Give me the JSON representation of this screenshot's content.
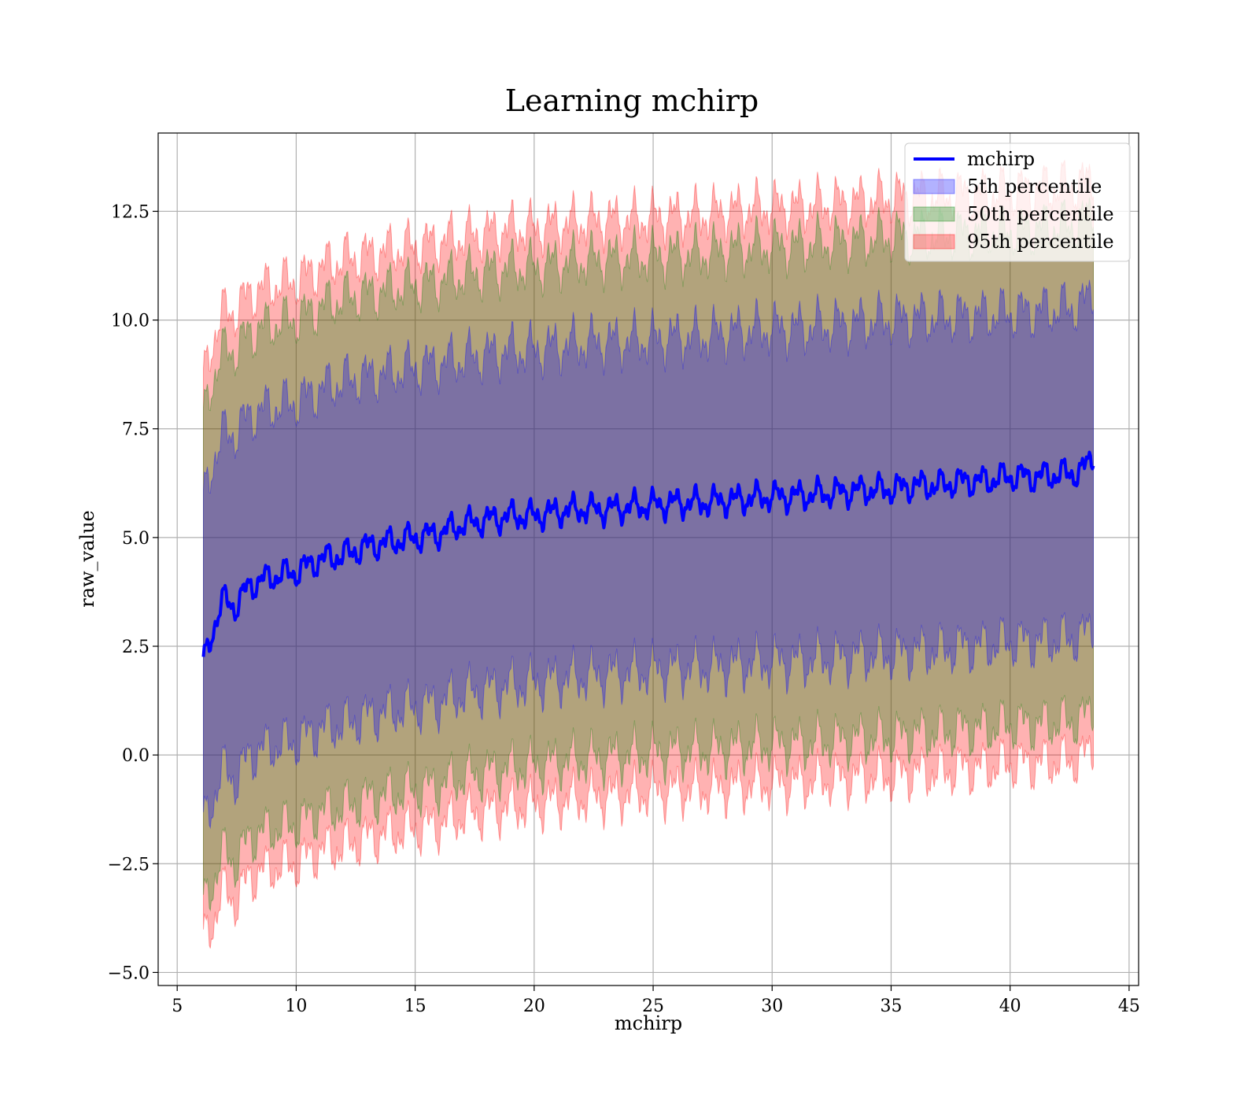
{
  "chart_data": {
    "type": "line",
    "title": "Learning mchirp",
    "xlabel": "mchirp",
    "ylabel": "raw_value",
    "xlim": [
      4.2,
      45.4
    ],
    "ylim": [
      -5.3,
      14.3
    ],
    "xticks": [
      5,
      10,
      15,
      20,
      25,
      30,
      35,
      40,
      45
    ],
    "xtick_labels": [
      "5",
      "10",
      "15",
      "20",
      "25",
      "30",
      "35",
      "40",
      "45"
    ],
    "yticks": [
      -5.0,
      -2.5,
      0.0,
      2.5,
      5.0,
      7.5,
      10.0,
      12.5
    ],
    "ytick_labels": [
      "−5.0",
      "−2.5",
      "0.0",
      "2.5",
      "5.0",
      "7.5",
      "10.0",
      "12.5"
    ],
    "grid": true,
    "legend_position": "top-right",
    "x": [
      6.1,
      6.5,
      7.0,
      7.5,
      8.0,
      9.0,
      10.0,
      11.0,
      12.0,
      13.0,
      14.0,
      15.0,
      16.0,
      17.0,
      18.0,
      19.0,
      20.0,
      21.0,
      22.0,
      23.0,
      24.0,
      25.0,
      26.0,
      27.0,
      28.0,
      29.0,
      30.0,
      31.0,
      32.0,
      33.0,
      34.0,
      35.0,
      36.0,
      37.0,
      38.0,
      39.0,
      40.0,
      41.0,
      42.0,
      43.0,
      43.5
    ],
    "series": [
      {
        "name": "mchirp",
        "kind": "line",
        "color": "#0000ff",
        "y": [
          2.1,
          2.9,
          3.6,
          3.4,
          3.9,
          4.1,
          4.2,
          4.5,
          4.6,
          4.8,
          4.9,
          5.0,
          5.1,
          5.3,
          5.4,
          5.5,
          5.5,
          5.6,
          5.65,
          5.65,
          5.7,
          5.75,
          5.8,
          5.8,
          5.85,
          5.9,
          5.95,
          5.95,
          6.0,
          6.05,
          6.1,
          6.1,
          6.2,
          6.2,
          6.3,
          6.3,
          6.4,
          6.4,
          6.45,
          6.5,
          6.9
        ]
      },
      {
        "name": "5th percentile",
        "kind": "band",
        "color": "#0000ff",
        "upper": [
          5.8,
          6.8,
          7.4,
          7.4,
          7.8,
          8.0,
          8.1,
          8.4,
          8.6,
          8.7,
          8.8,
          8.9,
          9.0,
          9.1,
          9.2,
          9.3,
          9.3,
          9.4,
          9.45,
          9.5,
          9.5,
          9.55,
          9.6,
          9.6,
          9.7,
          9.75,
          9.8,
          9.8,
          9.85,
          9.9,
          9.95,
          10.0,
          10.05,
          10.05,
          10.1,
          10.1,
          10.15,
          10.2,
          10.25,
          10.3,
          10.7
        ],
        "lower": [
          -1.6,
          -1.0,
          -0.3,
          -0.6,
          0.0,
          0.2,
          0.3,
          0.6,
          0.7,
          0.9,
          1.0,
          1.1,
          1.2,
          1.4,
          1.5,
          1.6,
          1.65,
          1.75,
          1.8,
          1.85,
          1.9,
          1.95,
          2.0,
          2.0,
          2.05,
          2.1,
          2.15,
          2.15,
          2.2,
          2.25,
          2.3,
          2.3,
          2.4,
          2.4,
          2.5,
          2.5,
          2.6,
          2.6,
          2.65,
          2.7,
          3.0
        ]
      },
      {
        "name": "50th percentile",
        "kind": "band",
        "color": "#008000",
        "upper": [
          7.7,
          8.7,
          9.3,
          9.3,
          9.7,
          9.9,
          10.0,
          10.3,
          10.5,
          10.6,
          10.7,
          10.8,
          10.9,
          11.0,
          11.1,
          11.2,
          11.2,
          11.3,
          11.35,
          11.4,
          11.4,
          11.45,
          11.5,
          11.5,
          11.6,
          11.65,
          11.7,
          11.7,
          11.75,
          11.8,
          11.85,
          11.9,
          11.95,
          11.95,
          12.0,
          12.0,
          12.05,
          12.1,
          12.15,
          12.2,
          12.6
        ],
        "lower": [
          -3.5,
          -2.9,
          -2.2,
          -2.5,
          -1.9,
          -1.7,
          -1.6,
          -1.3,
          -1.2,
          -1.0,
          -0.9,
          -0.8,
          -0.7,
          -0.5,
          -0.4,
          -0.3,
          -0.25,
          -0.15,
          -0.1,
          -0.05,
          0.0,
          0.05,
          0.1,
          0.1,
          0.15,
          0.2,
          0.25,
          0.25,
          0.3,
          0.35,
          0.4,
          0.4,
          0.5,
          0.5,
          0.6,
          0.6,
          0.7,
          0.7,
          0.75,
          0.8,
          1.1
        ]
      },
      {
        "name": "95th percentile",
        "kind": "band",
        "color": "#ff0000",
        "upper": [
          8.6,
          9.6,
          10.2,
          10.2,
          10.6,
          10.8,
          10.9,
          11.2,
          11.4,
          11.5,
          11.6,
          11.7,
          11.8,
          11.9,
          12.0,
          12.1,
          12.1,
          12.2,
          12.25,
          12.3,
          12.3,
          12.35,
          12.4,
          12.4,
          12.5,
          12.55,
          12.6,
          12.6,
          12.65,
          12.7,
          12.75,
          12.8,
          12.85,
          12.85,
          12.9,
          12.9,
          12.95,
          13.0,
          13.05,
          13.1,
          13.3
        ],
        "lower": [
          -4.3,
          -3.8,
          -3.1,
          -3.4,
          -2.8,
          -2.6,
          -2.5,
          -2.2,
          -2.1,
          -1.9,
          -1.8,
          -1.7,
          -1.6,
          -1.4,
          -1.3,
          -1.2,
          -1.15,
          -1.05,
          -1.0,
          -0.95,
          -0.9,
          -0.85,
          -0.8,
          -0.8,
          -0.75,
          -0.7,
          -0.65,
          -0.65,
          -0.6,
          -0.55,
          -0.5,
          -0.5,
          -0.4,
          -0.4,
          -0.3,
          -0.3,
          -0.2,
          -0.2,
          -0.15,
          -0.1,
          0.2
        ]
      }
    ],
    "legend": [
      {
        "label": "mchirp",
        "kind": "line",
        "color": "#0000ff"
      },
      {
        "label": "5th percentile",
        "kind": "patch",
        "color": "#0000ff"
      },
      {
        "label": "50th percentile",
        "kind": "patch",
        "color": "#008000"
      },
      {
        "label": "95th percentile",
        "kind": "patch",
        "color": "#ff0000"
      }
    ]
  }
}
